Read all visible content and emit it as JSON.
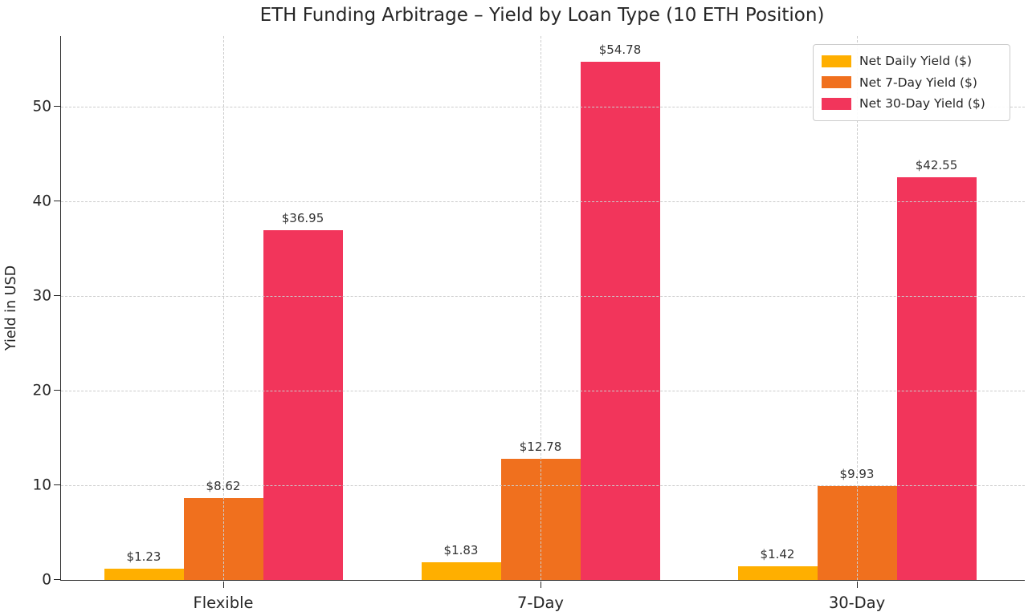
{
  "title": "ETH Funding Arbitrage – Yield by Loan Type (10 ETH Position)",
  "chart_data": {
    "type": "bar",
    "title": "ETH Funding Arbitrage – Yield by Loan Type (10 ETH Position)",
    "xlabel": "",
    "ylabel": "Yield in USD",
    "categories": [
      "Flexible",
      "7-Day",
      "30-Day"
    ],
    "series": [
      {
        "name": "Net Daily Yield ($)",
        "color": "#FFAF00",
        "values": [
          1.23,
          1.83,
          1.42
        ],
        "labels": [
          "$1.23",
          "$1.83",
          "$1.42"
        ]
      },
      {
        "name": "Net 7-Day Yield ($)",
        "color": "#F0701E",
        "values": [
          8.62,
          12.78,
          9.93
        ],
        "labels": [
          "$8.62",
          "$12.78",
          "$9.93"
        ]
      },
      {
        "name": "Net 30-Day Yield ($)",
        "color": "#F2355B",
        "values": [
          36.95,
          54.78,
          42.55
        ],
        "labels": [
          "$36.95",
          "$54.78",
          "$42.55"
        ]
      }
    ],
    "ylim": [
      0,
      57.5
    ],
    "yticks": [
      0,
      10,
      20,
      30,
      40,
      50
    ],
    "grid": "dashed, both axes, drawn above bars",
    "grid_color": "#cccccc",
    "legend_position": "upper right",
    "background_color": "#ffffff",
    "text_color": "#262626"
  }
}
